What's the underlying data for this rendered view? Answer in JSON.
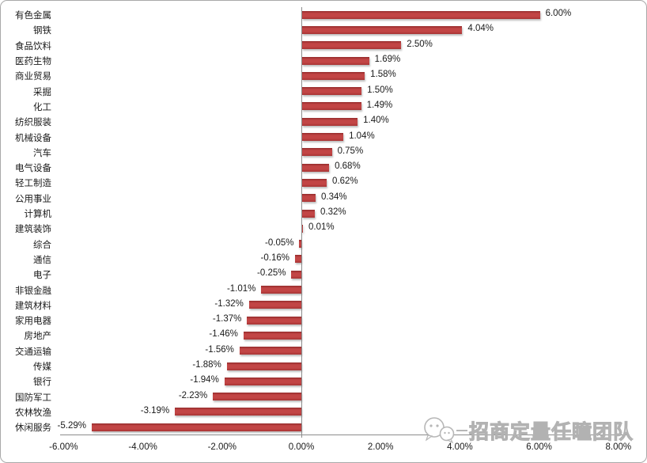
{
  "watermark": {
    "text": "招商定量任瞳团队",
    "icon": "wechat-logo-icon"
  },
  "colors": {
    "bar": "#be3c3c",
    "bar_gradient_top": "#952b2b",
    "bar_gradient_mid": "#c24545",
    "bar_gradient_bottom": "#a83434",
    "axis": "#8c8c8c",
    "text": "#1a1a1a",
    "watermark": "#b2b2b2",
    "frame_border": "#a9a9a9",
    "background": "#ffffff"
  },
  "chart_data": {
    "type": "bar",
    "orientation": "horizontal",
    "title": "",
    "xlabel": "",
    "ylabel": "",
    "grid": false,
    "legend": false,
    "xlim": [
      -6.5,
      8.3
    ],
    "categories": [
      "有色金属",
      "钢铁",
      "食品饮料",
      "医药生物",
      "商业贸易",
      "采掘",
      "化工",
      "纺织服装",
      "机械设备",
      "汽车",
      "电气设备",
      "轻工制造",
      "公用事业",
      "计算机",
      "建筑装饰",
      "综合",
      "通信",
      "电子",
      "非银金融",
      "建筑材料",
      "家用电器",
      "房地产",
      "交通运输",
      "传媒",
      "银行",
      "国防军工",
      "农林牧渔",
      "休闲服务"
    ],
    "values": [
      6.0,
      4.04,
      2.5,
      1.69,
      1.58,
      1.5,
      1.49,
      1.4,
      1.04,
      0.75,
      0.68,
      0.62,
      0.34,
      0.32,
      0.01,
      -0.05,
      -0.16,
      -0.25,
      -1.01,
      -1.32,
      -1.37,
      -1.46,
      -1.56,
      -1.88,
      -1.94,
      -2.23,
      -3.19,
      -5.29
    ],
    "data_labels": [
      "6.00%",
      "4.04%",
      "2.50%",
      "1.69%",
      "1.58%",
      "1.50%",
      "1.49%",
      "1.40%",
      "1.04%",
      "0.75%",
      "0.68%",
      "0.62%",
      "0.34%",
      "0.32%",
      "0.01%",
      "-0.05%",
      "-0.16%",
      "-0.25%",
      "-1.01%",
      "-1.32%",
      "-1.37%",
      "-1.46%",
      "-1.56%",
      "-1.88%",
      "-1.94%",
      "-2.23%",
      "-3.19%",
      "-5.29%"
    ],
    "x_tick_values": [
      -6,
      -4,
      -2,
      0,
      2,
      4,
      6,
      8
    ],
    "x_tick_labels": [
      "-6.00%",
      "-4.00%",
      "-2.00%",
      "0.00%",
      "2.00%",
      "4.00%",
      "6.00%",
      "8.00%"
    ]
  }
}
